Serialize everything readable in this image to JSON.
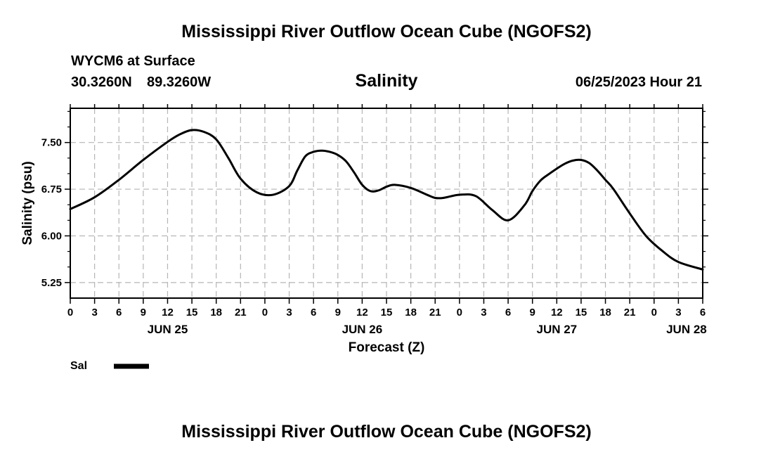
{
  "header": {
    "title": "Mississippi River Outflow Ocean Cube (NGOFS2)",
    "station": "WYCM6 at Surface",
    "lat": "30.3260N",
    "lon": "89.3260W",
    "subtitle": "Salinity",
    "datetime": "06/25/2023 Hour 21"
  },
  "legend": {
    "label": "Sal",
    "color": "#000000"
  },
  "footer": {
    "title": "Mississippi River Outflow Ocean Cube (NGOFS2)"
  },
  "chart_data": {
    "type": "line",
    "title": "Salinity",
    "xlabel": "Forecast (Z)",
    "ylabel": "Salinity (psu)",
    "x_unit": "forecast hours from JUN 25 00Z",
    "xlim": [
      0,
      78
    ],
    "ylim": [
      5.0,
      8.05
    ],
    "grid": true,
    "y_ticks": [
      5.25,
      6.0,
      6.75,
      7.5
    ],
    "y_tick_labels": [
      "5.25",
      "6.00",
      "6.75",
      "7.50"
    ],
    "y_minor_step": 0.25,
    "x_ticks": [
      0,
      3,
      6,
      9,
      12,
      15,
      18,
      21,
      24,
      27,
      30,
      33,
      36,
      39,
      42,
      45,
      48,
      51,
      54,
      57,
      60,
      63,
      66,
      69,
      72,
      75,
      78
    ],
    "x_tick_labels": [
      "0",
      "3",
      "6",
      "9",
      "12",
      "15",
      "18",
      "21",
      "0",
      "3",
      "6",
      "9",
      "12",
      "15",
      "18",
      "21",
      "0",
      "3",
      "6",
      "9",
      "12",
      "15",
      "18",
      "21",
      "0",
      "3",
      "6"
    ],
    "date_labels": [
      {
        "x": 12,
        "label": "JUN 25"
      },
      {
        "x": 36,
        "label": "JUN 26"
      },
      {
        "x": 60,
        "label": "JUN 27"
      },
      {
        "x": 76,
        "label": "JUN 28"
      }
    ],
    "series": [
      {
        "name": "Sal",
        "color": "#000000",
        "x": [
          0,
          3,
          6,
          9,
          12,
          13.5,
          15,
          16.5,
          18,
          19.5,
          21,
          23,
          25,
          27,
          28,
          29,
          30,
          31,
          32,
          33,
          34,
          35,
          36,
          37,
          38,
          39,
          40,
          42,
          44,
          45,
          46,
          48,
          50,
          52,
          54,
          56,
          57,
          58,
          59,
          60,
          61,
          62,
          63,
          64,
          65,
          66,
          67,
          69,
          71,
          73,
          75,
          78
        ],
        "values": [
          6.43,
          6.62,
          6.9,
          7.22,
          7.51,
          7.63,
          7.7,
          7.67,
          7.55,
          7.25,
          6.92,
          6.7,
          6.66,
          6.8,
          7.05,
          7.28,
          7.35,
          7.37,
          7.35,
          7.3,
          7.2,
          7.02,
          6.82,
          6.72,
          6.73,
          6.79,
          6.82,
          6.77,
          6.66,
          6.61,
          6.61,
          6.66,
          6.64,
          6.42,
          6.25,
          6.49,
          6.72,
          6.89,
          6.99,
          7.08,
          7.16,
          7.21,
          7.22,
          7.17,
          7.05,
          6.9,
          6.75,
          6.36,
          6.0,
          5.76,
          5.58,
          5.46
        ]
      }
    ]
  }
}
